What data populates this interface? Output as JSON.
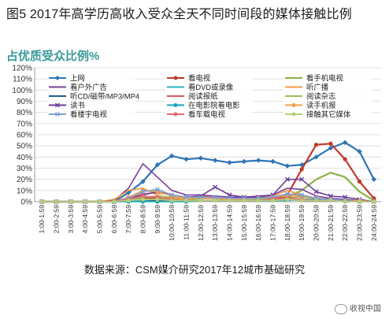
{
  "figure_title": "图5 2017年高学历高收入受众全天不同时间段的媒体接触比例",
  "source_note": "数据来源：CSM媒介研究2017年12城市基础研究",
  "watermark": "收视中国",
  "chart_data": {
    "type": "line",
    "title": "占优质受众比例%",
    "ylim": [
      0,
      120
    ],
    "yticks": [
      "0%",
      "10%",
      "20%",
      "30%",
      "40%",
      "50%",
      "60%",
      "70%",
      "80%",
      "90%",
      "100%",
      "110%",
      "120%"
    ],
    "grid": true,
    "legend_position": "top, inside plot",
    "categories": [
      "1:00-1:59",
      "2:00-2:59",
      "3:00-3:59",
      "4:00-4:59",
      "5:00-5:59",
      "6:00-6:59",
      "7:00-7:59",
      "8:00-8:59",
      "9:00-9:59",
      "10:00-10:59",
      "11:00-11:59",
      "12:00-12:59",
      "13:00-13:59",
      "14:00-14:59",
      "15:00-15:59",
      "16:00-16:59",
      "17:00-17:59",
      "18:00-18:59",
      "19:00-19:59",
      "20:00-20:59",
      "21:00-21:59",
      "22:00-22:59",
      "23:00-23:59",
      "24:00-24:59"
    ],
    "series": [
      {
        "name": "上网",
        "color": "#2e75b6",
        "marker": "diamond",
        "values": [
          0,
          0,
          0,
          0,
          0,
          0,
          8,
          18,
          33,
          41,
          38,
          39,
          37,
          35,
          36,
          37,
          36,
          32,
          33,
          40,
          48,
          53,
          45,
          20
        ]
      },
      {
        "name": "看电视",
        "color": "#c0392b",
        "marker": "circle",
        "values": [
          0,
          0,
          0,
          0,
          0,
          1,
          2,
          3,
          3,
          3,
          3,
          4,
          4,
          3,
          3,
          3,
          4,
          6,
          29,
          51,
          52,
          38,
          18,
          3
        ]
      },
      {
        "name": "看手机电视",
        "color": "#8db145",
        "marker": "none",
        "values": [
          0,
          0,
          0,
          0,
          0,
          0,
          1,
          2,
          2,
          2,
          2,
          3,
          3,
          2,
          2,
          2,
          3,
          4,
          10,
          20,
          26,
          22,
          9,
          1
        ]
      },
      {
        "name": "看户外广告",
        "color": "#7b3f9e",
        "marker": "none",
        "values": [
          0,
          0,
          0,
          0,
          0,
          1,
          12,
          34,
          22,
          10,
          6,
          6,
          5,
          4,
          4,
          5,
          6,
          12,
          11,
          5,
          3,
          2,
          1,
          0
        ]
      },
      {
        "name": "看DVD或录像",
        "color": "#2bb3c0",
        "marker": "none",
        "values": [
          0,
          0,
          0,
          0,
          0,
          0,
          0,
          1,
          1,
          1,
          1,
          1,
          1,
          1,
          1,
          1,
          1,
          1,
          2,
          2,
          2,
          1,
          1,
          0
        ]
      },
      {
        "name": "听广播",
        "color": "#f39c3c",
        "marker": "none",
        "values": [
          0,
          0,
          0,
          0,
          0,
          2,
          10,
          12,
          6,
          3,
          2,
          4,
          3,
          2,
          2,
          3,
          5,
          10,
          6,
          3,
          2,
          1,
          1,
          0
        ]
      },
      {
        "name": "听CD/磁带/MP3/MP4",
        "color": "#1f5f8b",
        "marker": "none",
        "values": [
          0,
          0,
          0,
          0,
          0,
          0,
          1,
          2,
          1,
          1,
          1,
          1,
          1,
          1,
          1,
          1,
          1,
          2,
          1,
          1,
          1,
          1,
          1,
          0
        ]
      },
      {
        "name": "阅读报纸",
        "color": "#d45a5a",
        "marker": "none",
        "values": [
          0,
          0,
          0,
          0,
          0,
          1,
          3,
          7,
          8,
          6,
          4,
          5,
          4,
          3,
          3,
          3,
          3,
          4,
          4,
          3,
          2,
          1,
          0,
          0
        ]
      },
      {
        "name": "阅读杂志",
        "color": "#9dbf5a",
        "marker": "none",
        "values": [
          0,
          0,
          0,
          0,
          0,
          0,
          1,
          4,
          5,
          4,
          3,
          3,
          3,
          2,
          2,
          2,
          2,
          3,
          4,
          3,
          2,
          1,
          0,
          0
        ]
      },
      {
        "name": "读书",
        "color": "#6a3d9a",
        "marker": "x",
        "values": [
          0,
          0,
          0,
          0,
          0,
          0,
          2,
          6,
          9,
          6,
          4,
          5,
          13,
          6,
          4,
          4,
          6,
          20,
          20,
          9,
          5,
          4,
          2,
          0
        ]
      },
      {
        "name": "在电影院看电影",
        "color": "#1aa3b2",
        "marker": "circle",
        "values": [
          0,
          0,
          0,
          0,
          0,
          0,
          0,
          0,
          0,
          0,
          0,
          1,
          1,
          1,
          1,
          1,
          1,
          2,
          2,
          2,
          2,
          1,
          0,
          0
        ]
      },
      {
        "name": "读手机报",
        "color": "#f0a04b",
        "marker": "circle",
        "values": [
          0,
          0,
          0,
          0,
          0,
          0,
          4,
          10,
          9,
          5,
          3,
          3,
          3,
          2,
          2,
          3,
          4,
          6,
          5,
          3,
          2,
          1,
          1,
          0
        ]
      },
      {
        "name": "看楼宇电视",
        "color": "#7d9fd3",
        "marker": "x",
        "values": [
          0,
          0,
          0,
          0,
          0,
          0,
          3,
          9,
          11,
          6,
          4,
          4,
          4,
          3,
          3,
          3,
          4,
          7,
          6,
          3,
          2,
          1,
          0,
          0
        ]
      },
      {
        "name": "看车载电视",
        "color": "#e46c6c",
        "marker": "circle",
        "values": [
          0,
          0,
          0,
          0,
          0,
          0,
          2,
          5,
          4,
          2,
          1,
          1,
          1,
          1,
          1,
          1,
          2,
          3,
          2,
          1,
          1,
          0,
          0,
          0
        ]
      },
      {
        "name": "接触其它媒体",
        "color": "#b5cf7a",
        "marker": "circle",
        "values": [
          0,
          0,
          0,
          0,
          0,
          0,
          1,
          2,
          2,
          1,
          1,
          1,
          1,
          1,
          1,
          1,
          1,
          2,
          1,
          1,
          1,
          0,
          0,
          0
        ]
      }
    ]
  }
}
